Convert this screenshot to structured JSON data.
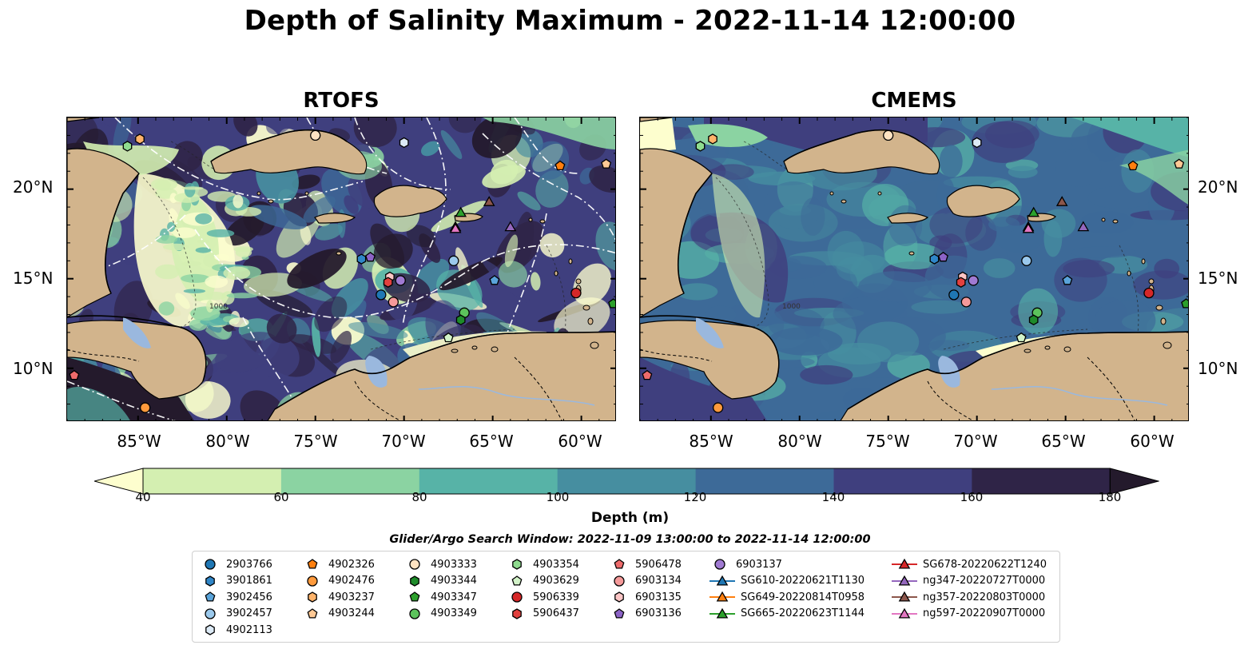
{
  "title": "Depth of Salinity Maximum - 2022-11-14 12:00:00",
  "panels": {
    "left_title": "RTOFS",
    "right_title": "CMEMS"
  },
  "axes": {
    "y_ticks": [
      "20°N",
      "15°N",
      "10°N"
    ],
    "x_ticks": [
      "85°W",
      "80°W",
      "75°W",
      "70°W",
      "65°W",
      "60°W"
    ]
  },
  "colors": {
    "land": "#d2b48c",
    "lakes": "#9ab8de",
    "colormap": [
      "#fdfece",
      "#d4efb1",
      "#8bd3a2",
      "#57b3a7",
      "#468ea0",
      "#3d6a98",
      "#3f3f7e",
      "#2f2447",
      "#241a2c"
    ]
  },
  "chart_data": [
    {
      "type": "heatmap",
      "name": "RTOFS",
      "variable": "Depth of Salinity Maximum",
      "xlim": [
        -89,
        -58
      ],
      "ylim": [
        7,
        24
      ],
      "lon_ticks": [
        -85,
        -80,
        -75,
        -70,
        -65,
        -60
      ],
      "lat_ticks": [
        10,
        15,
        20
      ],
      "contour_label": "1000"
    },
    {
      "type": "heatmap",
      "name": "CMEMS",
      "variable": "Depth of Salinity Maximum",
      "xlim": [
        -89,
        -58
      ],
      "ylim": [
        7,
        24
      ],
      "lon_ticks": [
        -85,
        -80,
        -75,
        -70,
        -65,
        -60
      ],
      "lat_ticks": [
        10,
        15,
        20
      ],
      "contour_label": "1000"
    }
  ],
  "colorbar": {
    "label": "Depth (m)",
    "levels": [
      40,
      60,
      80,
      100,
      120,
      140,
      160,
      180
    ],
    "extend": "both"
  },
  "search_window": "Glider/Argo Search Window: 2022-11-09 13:00:00 to 2022-11-14 12:00:00",
  "legend": {
    "items": [
      {
        "label": "2903766",
        "marker": "circle",
        "color": "#1f77b4"
      },
      {
        "label": "3901861",
        "marker": "hexagon",
        "color": "#2f86c8"
      },
      {
        "label": "3902456",
        "marker": "pentagon",
        "color": "#5aa4da"
      },
      {
        "label": "3902457",
        "marker": "circle",
        "color": "#9bc9ec"
      },
      {
        "label": "4902113",
        "marker": "hexagon",
        "color": "#dceaf6"
      },
      {
        "label": "4902326",
        "marker": "pentagon",
        "color": "#ff7f0e"
      },
      {
        "label": "4902476",
        "marker": "circle",
        "color": "#ff9a3c"
      },
      {
        "label": "4903237",
        "marker": "hexagon",
        "color": "#ffb36a"
      },
      {
        "label": "4903244",
        "marker": "pentagon",
        "color": "#ffc995"
      },
      {
        "label": "4903333",
        "marker": "circle",
        "color": "#ffe3c2"
      },
      {
        "label": "4903344",
        "marker": "hexagon",
        "color": "#1e8b2a"
      },
      {
        "label": "4903347",
        "marker": "pentagon",
        "color": "#2ca02c"
      },
      {
        "label": "4903349",
        "marker": "circle",
        "color": "#5cc35c"
      },
      {
        "label": "4903354",
        "marker": "hexagon",
        "color": "#8fdc8f"
      },
      {
        "label": "4903629",
        "marker": "pentagon",
        "color": "#d3f3c9"
      },
      {
        "label": "5906339",
        "marker": "circle",
        "color": "#d62728"
      },
      {
        "label": "5906437",
        "marker": "hexagon",
        "color": "#e2413f"
      },
      {
        "label": "5906478",
        "marker": "pentagon",
        "color": "#ee6b6b"
      },
      {
        "label": "6903134",
        "marker": "circle",
        "color": "#f59a9a"
      },
      {
        "label": "6903135",
        "marker": "hexagon",
        "color": "#fcc6c6"
      },
      {
        "label": "6903136",
        "marker": "pentagon",
        "color": "#8c63c6"
      },
      {
        "label": "6903137",
        "marker": "circle",
        "color": "#a07ad2"
      },
      {
        "label": "SG610-20220621T1130",
        "marker": "triangle-line",
        "color": "#1f77b4"
      },
      {
        "label": "SG649-20220814T0958",
        "marker": "triangle-line",
        "color": "#ff7f0e"
      },
      {
        "label": "SG665-20220623T1144",
        "marker": "triangle-line",
        "color": "#2ca02c"
      },
      {
        "label": "SG678-20220622T1240",
        "marker": "triangle-line",
        "color": "#d62728"
      },
      {
        "label": "ng347-20220727T0000",
        "marker": "triangle-line",
        "color": "#9467bd"
      },
      {
        "label": "ng357-20220803T0000",
        "marker": "triangle-line",
        "color": "#8c564b"
      },
      {
        "label": "ng597-20220907T0000",
        "marker": "triangle-line",
        "color": "#e377c2"
      }
    ]
  },
  "observations": [
    {
      "lon": -84.9,
      "lat": 22.8,
      "item": "4903237"
    },
    {
      "lon": -85.6,
      "lat": 22.4,
      "item": "4903354"
    },
    {
      "lon": -75.0,
      "lat": 23.0,
      "item": "4903333"
    },
    {
      "lon": -70.0,
      "lat": 22.6,
      "item": "4902113"
    },
    {
      "lon": -61.2,
      "lat": 21.3,
      "item": "4902326"
    },
    {
      "lon": -58.6,
      "lat": 21.4,
      "item": "4903244"
    },
    {
      "lon": -66.8,
      "lat": 18.7,
      "item": "SG665-20220623T1144"
    },
    {
      "lon": -65.2,
      "lat": 19.3,
      "item": "ng357-20220803T0000"
    },
    {
      "lon": -67.1,
      "lat": 17.9,
      "item": "SG649-20220814T0958"
    },
    {
      "lon": -67.1,
      "lat": 17.8,
      "item": "ng597-20220907T0000"
    },
    {
      "lon": -64.0,
      "lat": 17.9,
      "item": "ng347-20220727T0000"
    },
    {
      "lon": -72.4,
      "lat": 16.1,
      "item": "3901861"
    },
    {
      "lon": -71.9,
      "lat": 16.2,
      "item": "6903136"
    },
    {
      "lon": -67.2,
      "lat": 16.0,
      "item": "3902457"
    },
    {
      "lon": -64.9,
      "lat": 14.9,
      "item": "3902456"
    },
    {
      "lon": -70.8,
      "lat": 15.1,
      "item": "6903135"
    },
    {
      "lon": -70.9,
      "lat": 14.8,
      "item": "5906437"
    },
    {
      "lon": -70.2,
      "lat": 14.9,
      "item": "6903137"
    },
    {
      "lon": -71.3,
      "lat": 14.1,
      "item": "2903766"
    },
    {
      "lon": -70.6,
      "lat": 13.7,
      "item": "6903134"
    },
    {
      "lon": -66.6,
      "lat": 13.1,
      "item": "4903349"
    },
    {
      "lon": -66.8,
      "lat": 12.7,
      "item": "4903344"
    },
    {
      "lon": -67.5,
      "lat": 11.7,
      "item": "4903629"
    },
    {
      "lon": -60.3,
      "lat": 14.2,
      "item": "5906339"
    },
    {
      "lon": -58.2,
      "lat": 13.6,
      "item": "4903347"
    },
    {
      "lon": -88.6,
      "lat": 9.6,
      "item": "5906478"
    },
    {
      "lon": -84.6,
      "lat": 7.8,
      "item": "4902476"
    }
  ]
}
